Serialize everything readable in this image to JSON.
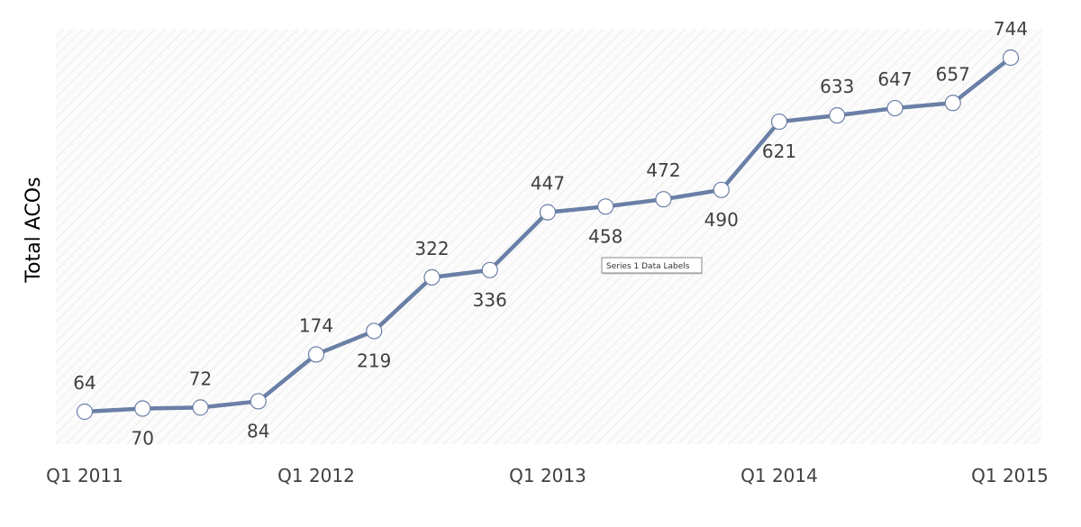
{
  "chart_data": {
    "type": "line",
    "title": "",
    "ylabel": "Total ACOs",
    "xlabel": "",
    "x_ticks": [
      "Q1 2011",
      "Q1 2012",
      "Q1 2013",
      "Q1 2014",
      "Q1 2015"
    ],
    "x_tick_indices": [
      0,
      4,
      8,
      12,
      16
    ],
    "ylim": [
      0,
      800
    ],
    "grid": false,
    "legend": "none",
    "series": [
      {
        "values": [
          64,
          70,
          72,
          84,
          174,
          219,
          322,
          336,
          447,
          458,
          472,
          490,
          621,
          633,
          647,
          657,
          744
        ],
        "label_positions": [
          "above",
          "below",
          "above",
          "below",
          "above",
          "below",
          "above",
          "below",
          "above",
          "below",
          "above",
          "below",
          "below",
          "above",
          "above",
          "above",
          "above"
        ]
      }
    ],
    "tooltip": "Series 1 Data Labels",
    "colors": {
      "line": "#6a7fa6",
      "marker_fill": "#ffffff",
      "marker_stroke": "#6a7fa6",
      "plot_hatch": "#eeeeee"
    }
  }
}
